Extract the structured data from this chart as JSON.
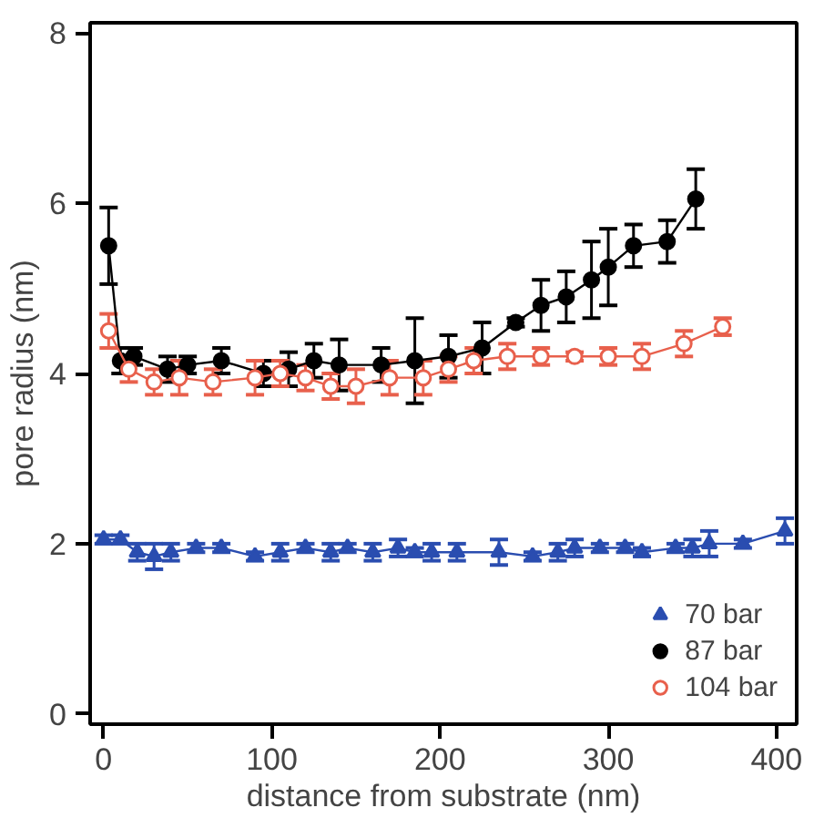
{
  "chart_data": {
    "type": "line",
    "xlabel": "distance from substrate (nm)",
    "ylabel": "pore radius (nm)",
    "xlim": [
      -8,
      412
    ],
    "ylim": [
      -0.12,
      8.12
    ],
    "xticks": [
      0,
      100,
      200,
      300,
      400
    ],
    "yticks": [
      0,
      2,
      4,
      6,
      8
    ],
    "grid": false,
    "legend": "bottom right",
    "line_style": "solid",
    "series": [
      {
        "name": "70 bar",
        "color": "#2a4db0",
        "marker": "triangle",
        "x": [
          0,
          10,
          20,
          30,
          40,
          55,
          70,
          90,
          105,
          120,
          135,
          145,
          160,
          175,
          185,
          195,
          210,
          235,
          255,
          270,
          280,
          295,
          310,
          320,
          340,
          350,
          360,
          380,
          405
        ],
        "values": [
          2.05,
          2.05,
          1.9,
          1.85,
          1.9,
          1.95,
          1.95,
          1.85,
          1.9,
          1.95,
          1.9,
          1.95,
          1.9,
          1.95,
          1.9,
          1.9,
          1.9,
          1.9,
          1.85,
          1.9,
          1.95,
          1.95,
          1.95,
          1.9,
          1.95,
          1.95,
          2.0,
          2.0,
          2.15
        ],
        "errors": [
          0.05,
          0.05,
          0.1,
          0.15,
          0.1,
          0.05,
          0.05,
          0.05,
          0.1,
          0.05,
          0.1,
          0.05,
          0.1,
          0.1,
          0.05,
          0.1,
          0.1,
          0.15,
          0.05,
          0.1,
          0.1,
          0.05,
          0.05,
          0.05,
          0.05,
          0.1,
          0.15,
          0.05,
          0.15
        ]
      },
      {
        "name": "87 bar",
        "color": "#000000",
        "marker": "circle",
        "x": [
          3,
          10,
          18,
          38,
          50,
          70,
          95,
          110,
          125,
          140,
          165,
          185,
          205,
          225,
          245,
          260,
          275,
          290,
          300,
          315,
          335,
          352
        ],
        "values": [
          5.5,
          4.15,
          4.2,
          4.05,
          4.1,
          4.15,
          4.0,
          4.05,
          4.15,
          4.1,
          4.1,
          4.15,
          4.2,
          4.3,
          4.6,
          4.8,
          4.9,
          5.1,
          5.25,
          5.5,
          5.55,
          6.05
        ],
        "errors": [
          0.45,
          0.15,
          0.1,
          0.15,
          0.1,
          0.15,
          0.15,
          0.2,
          0.2,
          0.3,
          0.2,
          0.5,
          0.25,
          0.3,
          0.05,
          0.3,
          0.3,
          0.45,
          0.45,
          0.25,
          0.25,
          0.35
        ]
      },
      {
        "name": "104 bar",
        "color": "#e8604c",
        "marker": "circle_open",
        "x": [
          3,
          15,
          30,
          45,
          65,
          90,
          105,
          120,
          135,
          150,
          170,
          190,
          205,
          220,
          240,
          260,
          280,
          300,
          320,
          345,
          368
        ],
        "values": [
          4.5,
          4.05,
          3.9,
          3.95,
          3.9,
          3.95,
          4.0,
          3.95,
          3.85,
          3.85,
          3.95,
          3.95,
          4.05,
          4.15,
          4.2,
          4.2,
          4.2,
          4.2,
          4.2,
          4.35,
          4.55
        ],
        "errors": [
          0.2,
          0.15,
          0.15,
          0.2,
          0.15,
          0.2,
          0.15,
          0.15,
          0.15,
          0.2,
          0.2,
          0.2,
          0.15,
          0.15,
          0.15,
          0.1,
          0.05,
          0.1,
          0.15,
          0.15,
          0.1
        ]
      }
    ]
  }
}
